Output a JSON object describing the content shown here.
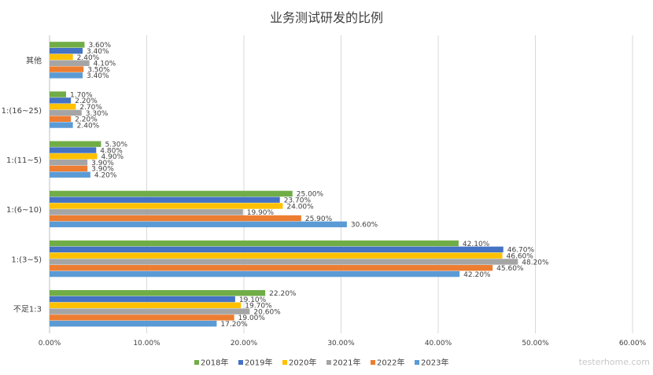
{
  "chart_data": {
    "type": "bar",
    "orientation": "horizontal",
    "title": "业务测试研发的比例",
    "categories": [
      "其他",
      "1:(16~25)",
      "1:(11~5)",
      "1:(6~10)",
      "1:(3~5)",
      "不足1:3"
    ],
    "xlim": [
      0,
      60
    ],
    "x_ticks": [
      "0.00%",
      "10.00%",
      "20.00%",
      "30.00%",
      "40.00%",
      "50.00%",
      "60.00%"
    ],
    "grid": true,
    "legend_position": "bottom",
    "series": [
      {
        "name": "2018年",
        "color": "#70ad47",
        "values": [
          3.6,
          1.7,
          5.3,
          25.0,
          42.1,
          22.2
        ],
        "labels": [
          "3.60%",
          "1.70%",
          "5.30%",
          "25.00%",
          "42.10%",
          "22.20%"
        ]
      },
      {
        "name": "2019年",
        "color": "#4472c4",
        "values": [
          3.4,
          2.2,
          4.8,
          23.7,
          46.7,
          19.1
        ],
        "labels": [
          "3.40%",
          "2.20%",
          "4.80%",
          "23.70%",
          "46.70%",
          "19.10%"
        ]
      },
      {
        "name": "2020年",
        "color": "#ffc000",
        "values": [
          2.4,
          2.7,
          4.9,
          24.0,
          46.6,
          19.7
        ],
        "labels": [
          "2.40%",
          "2.70%",
          "4.90%",
          "24.00%",
          "46.60%",
          "19.70%"
        ]
      },
      {
        "name": "2021年",
        "color": "#a5a5a5",
        "values": [
          4.1,
          3.3,
          3.9,
          19.9,
          48.2,
          20.6
        ],
        "labels": [
          "4.10%",
          "3.30%",
          "3.90%",
          "19.90%",
          "48.20%",
          "20.60%"
        ]
      },
      {
        "name": "2022年",
        "color": "#ed7d31",
        "values": [
          3.5,
          2.2,
          3.9,
          25.9,
          45.6,
          19.0
        ],
        "labels": [
          "3.50%",
          "2.20%",
          "3.90%",
          "25.90%",
          "45.60%",
          "19.00%"
        ]
      },
      {
        "name": "2023年",
        "color": "#5b9bd5",
        "values": [
          3.4,
          2.4,
          4.2,
          30.6,
          42.2,
          17.2
        ],
        "labels": [
          "3.40%",
          "2.40%",
          "4.20%",
          "30.60%",
          "42.20%",
          "17.20%"
        ]
      }
    ]
  },
  "watermark": "testerhome.com",
  "colors": {
    "grid": "#d9d9d9",
    "text": "#404040",
    "axis": "#bfbfbf"
  }
}
